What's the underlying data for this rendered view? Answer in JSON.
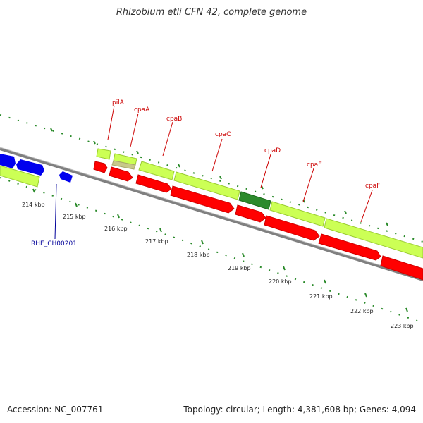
{
  "title": "Rhizobium etli CFN 42, complete genome",
  "footer": {
    "accession": "Accession: NC_007761",
    "summary": "Topology: circular; Length: 4,381,608 bp; Genes: 4,094"
  },
  "colors": {
    "backbone": "#808080",
    "tick": "#2a8a2a",
    "red_gene": "#ff0000",
    "blue_gene": "#0000ee",
    "lime_gene": "#ccff55",
    "dark_green_gene": "#2c8a2c",
    "khaki_gene": "#c8c88a",
    "gene_label": "#cc0000",
    "locus_label": "#000099"
  },
  "map": {
    "position_labels": [
      "214 kbp",
      "215 kbp",
      "216 kbp",
      "217 kbp",
      "218 kbp",
      "219 kbp",
      "220 kbp",
      "221 kbp",
      "222 kbp",
      "223 kbp"
    ],
    "gene_labels": [
      {
        "text": "pilA",
        "color": "red"
      },
      {
        "text": "cpaA",
        "color": "red"
      },
      {
        "text": "cpaB",
        "color": "red"
      },
      {
        "text": "cpaC",
        "color": "red"
      },
      {
        "text": "cpaD",
        "color": "red"
      },
      {
        "text": "cpaE",
        "color": "red"
      },
      {
        "text": "cpaF",
        "color": "red"
      },
      {
        "text": "RHE_CH00201",
        "color": "blue"
      }
    ]
  }
}
